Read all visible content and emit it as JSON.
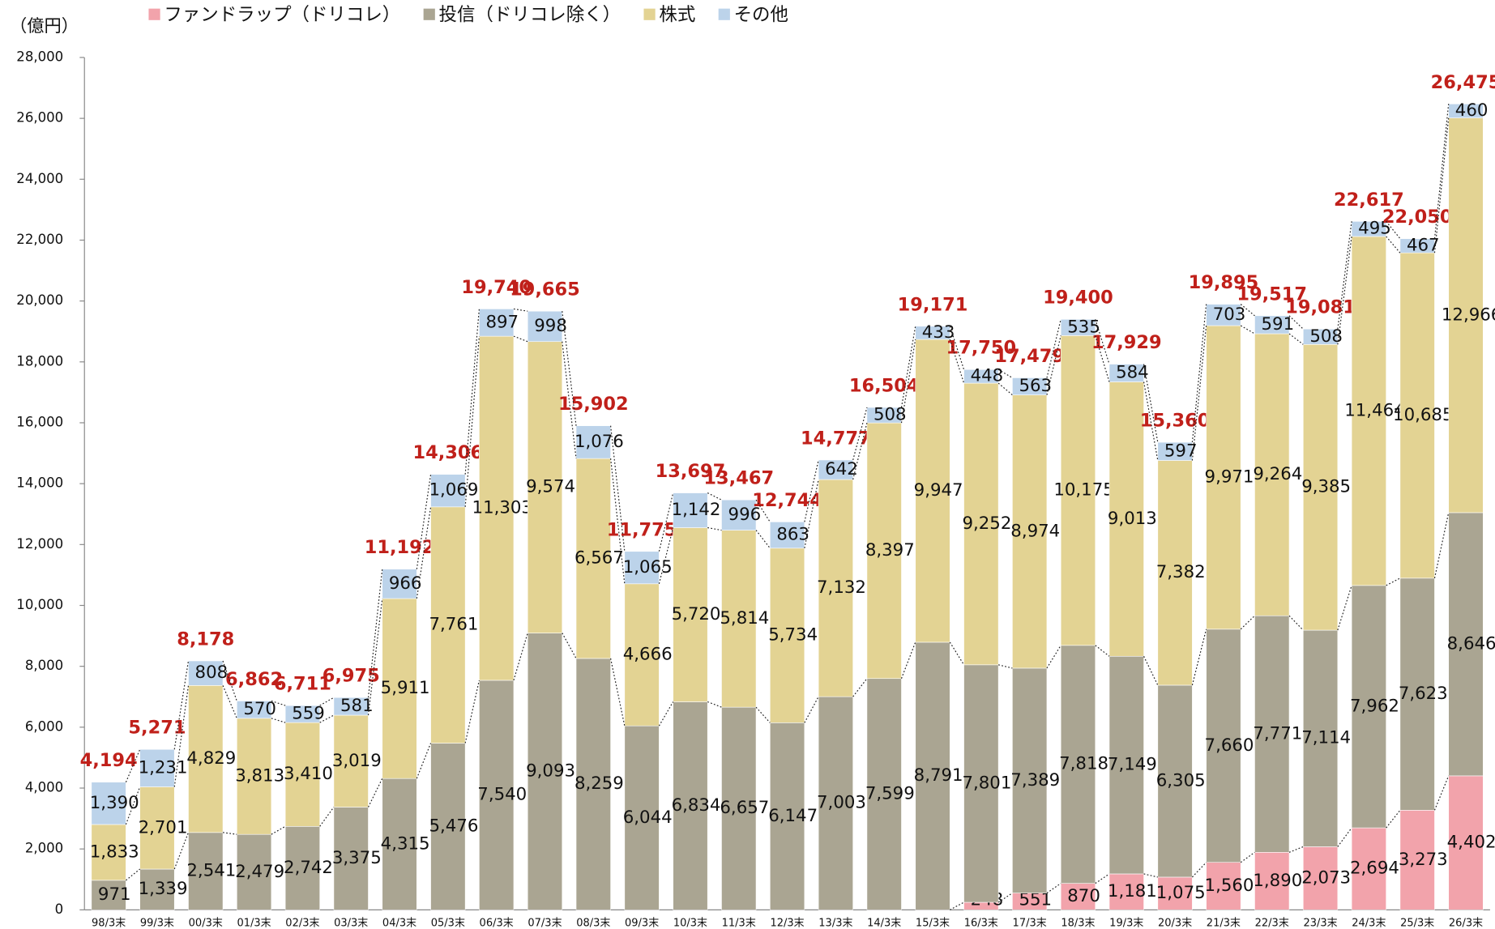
{
  "chart_data": {
    "type": "stacked_bar",
    "unit_label": "（億円）",
    "categories": [
      "98/3末",
      "99/3末",
      "00/3末",
      "01/3末",
      "02/3末",
      "03/3末",
      "04/3末",
      "05/3末",
      "06/3末",
      "07/3末",
      "08/3末",
      "09/3末",
      "10/3末",
      "11/3末",
      "12/3末",
      "13/3末",
      "14/3末",
      "15/3末",
      "16/3末",
      "17/3末",
      "18/3末",
      "19/3末",
      "20/3末",
      "21/3末",
      "22/3末",
      "23/3末",
      "24/3末",
      "25/3末",
      "26/3末"
    ],
    "series": [
      {
        "name": "ファンドラップ（ドリコレ）",
        "color": "#f2a3ab",
        "values": [
          null,
          null,
          null,
          null,
          null,
          null,
          null,
          null,
          null,
          null,
          null,
          null,
          null,
          null,
          null,
          null,
          null,
          null,
          248,
          551,
          870,
          1181,
          1075,
          1560,
          1890,
          2073,
          2694,
          3273,
          4402
        ],
        "value_labels": [
          null,
          null,
          null,
          null,
          null,
          null,
          null,
          null,
          null,
          null,
          null,
          null,
          null,
          null,
          null,
          null,
          null,
          null,
          "248",
          "551",
          "870",
          "1,181",
          "1,075",
          "1,560",
          "1,890",
          "2,073",
          "2,694",
          "3,273",
          "4,402"
        ]
      },
      {
        "name": "投信（ドリコレ除く）",
        "color": "#aaa592",
        "values": [
          971,
          1339,
          2541,
          2479,
          2742,
          3375,
          4315,
          5476,
          7540,
          9093,
          8259,
          6044,
          6834,
          6657,
          6147,
          7003,
          7599,
          8791,
          7801,
          7389,
          7818,
          7149,
          6305,
          7660,
          7771,
          7114,
          7962,
          7623,
          8646
        ],
        "value_labels": [
          "971",
          "1,339",
          "2,541",
          "2,479",
          "2,742",
          "3,375",
          "4,315",
          "5,476",
          "7,540",
          "9,093",
          "8,259",
          "6,044",
          "6,834",
          "6,657",
          "6,147",
          "7,003",
          "7,599",
          "8,791",
          "7,801",
          "7,389",
          "7,818",
          "7,149",
          "6,305",
          "7,660",
          "7,771",
          "7,114",
          "7,962",
          "7,623",
          "8,646"
        ]
      },
      {
        "name": "株式",
        "color": "#e3d393",
        "values": [
          1833,
          2701,
          4829,
          3813,
          3410,
          3019,
          5911,
          7761,
          11303,
          9574,
          6567,
          4666,
          5720,
          5814,
          5734,
          7132,
          8397,
          9947,
          9252,
          8974,
          10175,
          9013,
          7382,
          9971,
          9264,
          9385,
          11464,
          10685,
          12966
        ],
        "value_labels": [
          "1,833",
          "2,701",
          "4,829",
          "3,813",
          "3,410",
          "3,019",
          "5,911",
          "7,761",
          "11,303",
          "9,574",
          "6,567",
          "4,666",
          "5,720",
          "5,814",
          "5,734",
          "7,132",
          "8,397",
          "9,947",
          "9,252",
          "8,974",
          "10,175",
          "9,013",
          "7,382",
          "9,971",
          "9,264",
          "9,385",
          "11,464",
          "10,685",
          "12,966"
        ]
      },
      {
        "name": "その他",
        "color": "#bcd3ea",
        "values": [
          1390,
          1231,
          808,
          570,
          559,
          581,
          966,
          1069,
          897,
          998,
          1076,
          1065,
          1142,
          996,
          863,
          642,
          508,
          433,
          448,
          563,
          535,
          584,
          597,
          703,
          591,
          508,
          495,
          467,
          460
        ],
        "value_labels": [
          "1,390",
          "1,231",
          "808",
          "570",
          "559",
          "581",
          "966",
          "1,069",
          "897",
          "998",
          "1,076",
          "1,065",
          "1,142",
          "996",
          "863",
          "642",
          "508",
          "433",
          "448",
          "563",
          "535",
          "584",
          "597",
          "703",
          "591",
          "508",
          "495",
          "467",
          "460"
        ]
      }
    ],
    "totals": [
      4194,
      5271,
      8178,
      6862,
      6711,
      6975,
      11192,
      14306,
      19740,
      19665,
      15902,
      11775,
      13697,
      13467,
      12744,
      14777,
      16504,
      19171,
      17750,
      17479,
      19400,
      17929,
      15360,
      19895,
      19517,
      19081,
      22617,
      22050,
      26475
    ],
    "total_labels": [
      "4,194",
      "5,271",
      "8,178",
      "6,862",
      "6,711",
      "6,975",
      "11,192",
      "14,306",
      "19,740",
      "19,665",
      "15,902",
      "11,775",
      "13,697",
      "13,467",
      "12,744",
      "14,777",
      "16,504",
      "19,171",
      "17,750",
      "17,479",
      "19,400",
      "17,929",
      "15,360",
      "19,895",
      "19,517",
      "19,081",
      "22,617",
      "22,050",
      "26,475"
    ],
    "total_color": "#c0201a",
    "ylim": [
      0,
      28000
    ],
    "yticks": [
      0,
      {
        "value": 2000,
        "label": "2,000"
      },
      {
        "value": 4000,
        "label": "4,000"
      },
      {
        "value": 6000,
        "label": "6,000"
      },
      {
        "value": 8000,
        "label": "8,000"
      },
      {
        "value": 10000,
        "label": "10,000"
      },
      {
        "value": 12000,
        "label": "12,000"
      },
      {
        "value": 14000,
        "label": "14,000"
      },
      {
        "value": 16000,
        "label": "16,000"
      },
      {
        "value": 18000,
        "label": "18,000"
      },
      {
        "value": 20000,
        "label": "20,000"
      },
      {
        "value": 22000,
        "label": "22,000"
      },
      {
        "value": 24000,
        "label": "24,000"
      },
      {
        "value": 26000,
        "label": "26,000"
      },
      {
        "value": 28000,
        "label": "28,000"
      }
    ],
    "grid": false,
    "legend": "top"
  }
}
